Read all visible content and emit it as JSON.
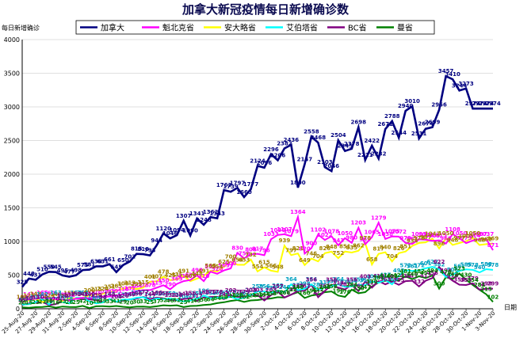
{
  "chart_data": {
    "type": "line",
    "title": "加拿大新冠疫情每日新增确诊数",
    "ylabel": "每日新增确诊",
    "xlabel": "日期",
    "ylim": [
      0,
      4000
    ],
    "yticks": [
      0,
      500,
      1000,
      1500,
      2000,
      2500,
      3000,
      3500,
      4000
    ],
    "grid": "horizontal",
    "legend_position": "top",
    "x": [
      "25-Aug-20",
      "26-Aug-20",
      "27-Aug-20",
      "28-Aug-20",
      "29-Aug-20",
      "30-Aug-20",
      "31-Aug-20",
      "1-Sep-20",
      "2-Sep-20",
      "3-Sep-20",
      "4-Sep-20",
      "5-Sep-20",
      "6-Sep-20",
      "7-Sep-20",
      "8-Sep-20",
      "9-Sep-20",
      "10-Sep-20",
      "11-Sep-20",
      "12-Sep-20",
      "13-Sep-20",
      "14-Sep-20",
      "15-Sep-20",
      "16-Sep-20",
      "17-Sep-20",
      "18-Sep-20",
      "19-Sep-20",
      "20-Sep-20",
      "21-Sep-20",
      "22-Sep-20",
      "23-Sep-20",
      "24-Sep-20",
      "25-Sep-20",
      "26-Sep-20",
      "27-Sep-20",
      "28-Sep-20",
      "29-Sep-20",
      "30-Sep-20",
      "1-Oct-20",
      "2-Oct-20",
      "3-Oct-20",
      "4-Oct-20",
      "5-Oct-20",
      "6-Oct-20",
      "7-Oct-20",
      "8-Oct-20",
      "9-Oct-20",
      "10-Oct-20",
      "11-Oct-20",
      "12-Oct-20",
      "13-Oct-20",
      "14-Oct-20",
      "15-Oct-20",
      "16-Oct-20",
      "17-Oct-20",
      "18-Oct-20",
      "19-Oct-20",
      "20-Oct-20",
      "21-Oct-20",
      "22-Oct-20",
      "23-Oct-20",
      "24-Oct-20",
      "25-Oct-20",
      "26-Oct-20",
      "27-Oct-20",
      "28-Oct-20",
      "29-Oct-20",
      "30-Oct-20",
      "31-Oct-20",
      "1-Nov-20",
      "2-Nov-20",
      "3-Nov-20"
    ],
    "xtick_labels": [
      "25-Aug-20",
      "27-Aug-20",
      "29-Aug-20",
      "31-Aug-20",
      "2-Sep-20",
      "4-Sep-20",
      "6-Sep-20",
      "8-Sep-20",
      "10-Sep-20",
      "12-Sep-20",
      "14-Sep-20",
      "16-Sep-20",
      "18-Sep-20",
      "20-Sep-20",
      "22-Sep-20",
      "24-Sep-20",
      "26-Sep-20",
      "28-Sep-20",
      "30-Sep-20",
      "2-Oct-20",
      "4-Oct-20",
      "6-Oct-20",
      "8-Oct-20",
      "10-Oct-20",
      "12-Oct-20",
      "14-Oct-20",
      "16-Oct-20",
      "18-Oct-20",
      "20-Oct-20",
      "22-Oct-20",
      "24-Oct-20",
      "26-Oct-20",
      "28-Oct-20",
      "30-Oct-20",
      "1-Nov-20",
      "3-Nov-20"
    ],
    "series": [
      {
        "name": "加拿大",
        "color": "#000080",
        "label_color": "#000080",
        "labeled": true,
        "values": [
          325,
          448,
          431,
          510,
          550,
          545,
          495,
          477,
          498,
          575,
          581,
          630,
          631,
          661,
          545,
          650,
          702,
          815,
          810,
          793,
          944,
          1120,
          1046,
          1094,
          1307,
          1090,
          1341,
          1248,
          1362,
          1343,
          1763,
          1739,
          1797,
          1660,
          1777,
          2124,
          2096,
          2296,
          2206,
          2382,
          2436,
          1800,
          2147,
          2558,
          2468,
          2103,
          2046,
          2504,
          2345,
          2378,
          2698,
          2211,
          2422,
          2232,
          2671,
          2788,
          2544,
          2940,
          3010,
          2531,
          2674,
          2699,
          2956,
          3457,
          3410,
          3244,
          3273,
          2974,
          2974,
          2974,
          2974
        ]
      },
      {
        "name": "魁北克省",
        "color": "#ff00ff",
        "label_color": "#ff00ff",
        "labeled": true,
        "values": [
          100,
          141,
          148,
          165,
          160,
          144,
          136,
          124,
          150,
          163,
          158,
          170,
          177,
          183,
          191,
          218,
          232,
          264,
          275,
          278,
          313,
          350,
          290,
          369,
          410,
          427,
          498,
          410,
          551,
          520,
          569,
          600,
          830,
          750,
          808,
          817,
          796,
          1033,
          1096,
          1107,
          1079,
          1364,
          820,
          900,
          1102,
          1022,
          1078,
          943,
          1050,
          980,
          1203,
          959,
          1065,
          1279,
          1038,
          1075,
          1072,
          979,
          963,
          1033,
          1026,
          1009,
          1015,
          968,
          1108,
          1050,
          975,
          1014,
          1037,
          1037,
          871
        ]
      },
      {
        "name": "安大略省",
        "color": "#ffff00",
        "label_color": "#a08000",
        "labeled": true,
        "values": [
          100,
          125,
          148,
          100,
          123,
          140,
          114,
          158,
          150,
          163,
          200,
          215,
          224,
          251,
          265,
          300,
          313,
          293,
          315,
          401,
          407,
          478,
          425,
          435,
          491,
          409,
          448,
          491,
          565,
          554,
          625,
          700,
          654,
          653,
          732,
          554,
          615,
          566,
          548,
          939,
          797,
          821,
          649,
          746,
          704,
          826,
          848,
          752,
          851,
          835,
          862,
          978,
          658,
          817,
          840,
          704,
          826,
          851,
          934,
          978,
          987,
          1042,
          896,
          1050,
          948,
          977,
          1005,
          1050,
          948,
          960,
          969
        ]
      },
      {
        "name": "艾伯塔省",
        "color": "#00ffff",
        "label_color": "#00a0c0",
        "labeled": true,
        "values": [
          61,
          70,
          100,
          142,
          62,
          163,
          99,
          78,
          164,
          164,
          111,
          80,
          94,
          145,
          105,
          136,
          137,
          164,
          172,
          117,
          154,
          146,
          153,
          133,
          107,
          124,
          153,
          196,
          156,
          166,
          158,
          179,
          143,
          161,
          201,
          259,
          256,
          236,
          269,
          246,
          364,
          276,
          298,
          364,
          282,
          317,
          336,
          364,
          325,
          334,
          359,
          350,
          406,
          386,
          427,
          364,
          492,
          572,
          561,
          572,
          601,
          622,
          582,
          472,
          506,
          561,
          585,
          578,
          540,
          588,
          578
        ]
      },
      {
        "name": "BC省",
        "color": "#800080",
        "label_color": "#800080",
        "labeled": true,
        "values": [
          55,
          80,
          93,
          102,
          55,
          70,
          120,
          137,
          150,
          141,
          140,
          130,
          98,
          144,
          104,
          120,
          140,
          150,
          177,
          144,
          166,
          155,
          130,
          128,
          146,
          156,
          117,
          168,
          175,
          178,
          143,
          202,
          176,
          179,
          203,
          203,
          122,
          203,
          257,
          167,
          209,
          265,
          267,
          356,
          172,
          265,
          356,
          313,
          287,
          356,
          263,
          403,
          313,
          410,
          363,
          404,
          355,
          410,
          417,
          332,
          417,
          456,
          622,
          494,
          418,
          358,
          353,
          379,
          284,
          298,
          299
        ]
      },
      {
        "name": "曼省",
        "color": "#008000",
        "label_color": "#008000",
        "labeled": true,
        "values": [
          20,
          15,
          23,
          27,
          36,
          16,
          33,
          26,
          25,
          42,
          10,
          36,
          39,
          33,
          41,
          29,
          20,
          30,
          33,
          25,
          37,
          52,
          46,
          52,
          25,
          41,
          45,
          56,
          64,
          84,
          96,
          116,
          129,
          102,
          124,
          129,
          144,
          153,
          172,
          166,
          212,
          246,
          160,
          196,
          212,
          246,
          258,
          196,
          176,
          284,
          230,
          247,
          330,
          391,
          416,
          413,
          423,
          481,
          440,
          482,
          457,
          494,
          300,
          470,
          442,
          523,
          430,
          354,
          281,
          215,
          102
        ]
      }
    ]
  }
}
